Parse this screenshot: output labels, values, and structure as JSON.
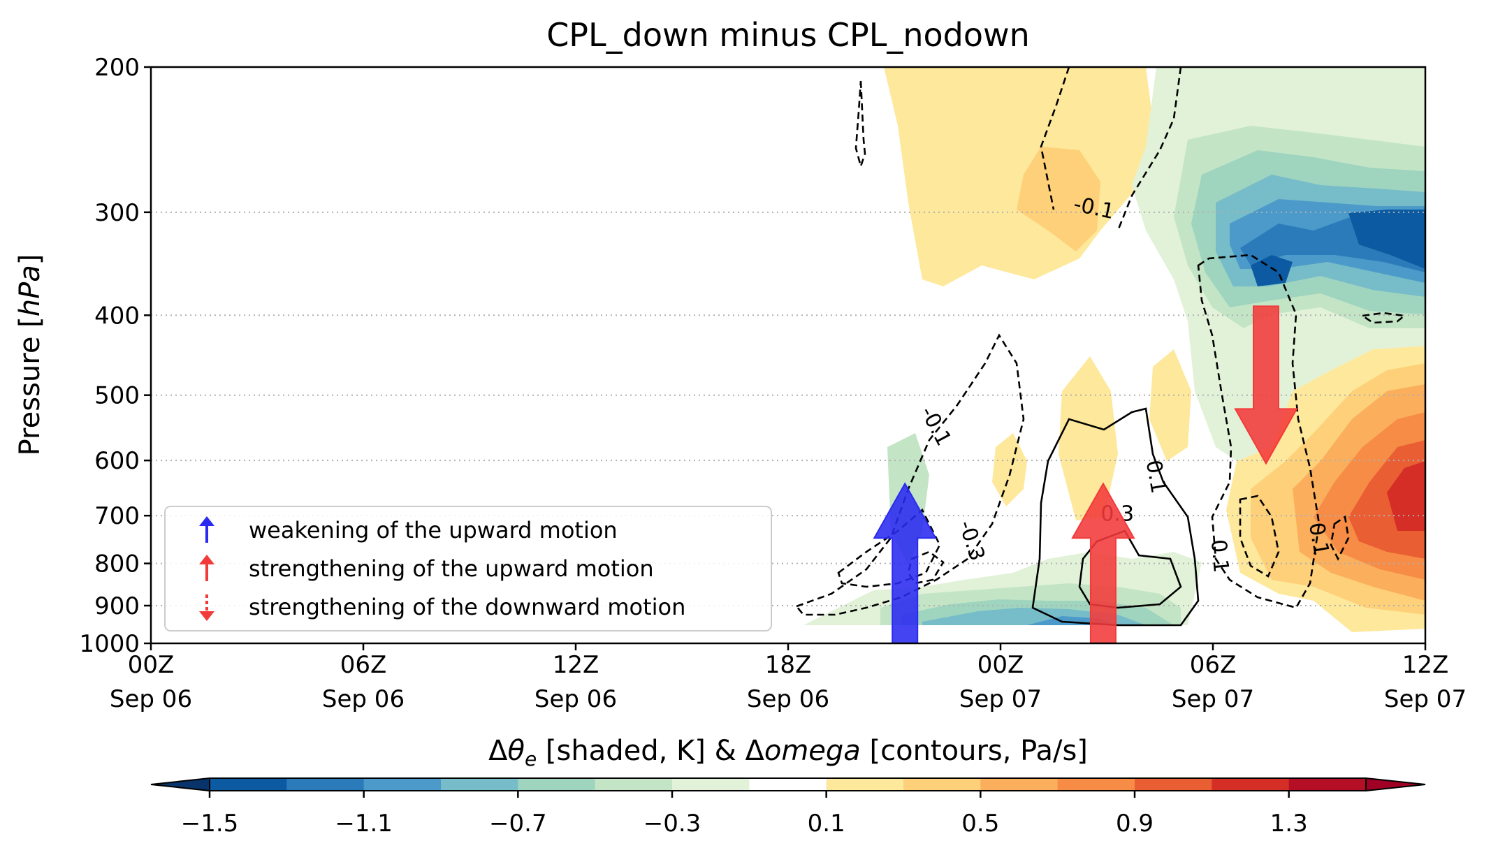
{
  "chart_data": {
    "type": "heatmap",
    "title": "CPL_down minus CPL_nodown",
    "ylabel_main": "Pressure [",
    "ylabel_unit": "hPa",
    "ylabel_end": "]",
    "yscale": "log",
    "ylim": [
      1000,
      200
    ],
    "yticks": [
      {
        "value": 200,
        "label": "200"
      },
      {
        "value": 300,
        "label": "300"
      },
      {
        "value": 400,
        "label": "400"
      },
      {
        "value": 500,
        "label": "500"
      },
      {
        "value": 600,
        "label": "600"
      },
      {
        "value": 700,
        "label": "700"
      },
      {
        "value": 800,
        "label": "800"
      },
      {
        "value": 900,
        "label": "900"
      },
      {
        "value": 1000,
        "label": "1000"
      }
    ],
    "xlim_hours": [
      0,
      36
    ],
    "xticks": [
      {
        "hour": 0,
        "line1": "00Z",
        "line2": "Sep 06"
      },
      {
        "hour": 6,
        "line1": "06Z",
        "line2": "Sep 06"
      },
      {
        "hour": 12,
        "line1": "12Z",
        "line2": "Sep 06"
      },
      {
        "hour": 18,
        "line1": "18Z",
        "line2": "Sep 06"
      },
      {
        "hour": 24,
        "line1": "00Z",
        "line2": "Sep 07"
      },
      {
        "hour": 30,
        "line1": "06Z",
        "line2": "Sep 07"
      },
      {
        "hour": 36,
        "line1": "12Z",
        "line2": "Sep 07"
      }
    ],
    "grid": "horizontal dotted at pressure ticks",
    "colorbar": {
      "label_prefix": "Δ",
      "label_theta": "θ",
      "label_sub": "e",
      "label_mid": " [shaded, K] & Δ",
      "label_omega": "omega",
      "label_end": " [contours, Pa/s]",
      "bounds": [
        -1.5,
        -1.3,
        -1.1,
        -0.9,
        -0.7,
        -0.5,
        -0.3,
        -0.1,
        0.1,
        0.3,
        0.5,
        0.7,
        0.9,
        1.1,
        1.3,
        1.5
      ],
      "colors": [
        "#0b5aa2",
        "#2b7bba",
        "#4c9ac9",
        "#76bcc9",
        "#9fd4bf",
        "#c3e5c6",
        "#e2f2d9",
        "#ffffff",
        "#fee89b",
        "#fdd079",
        "#fbae5c",
        "#f68c45",
        "#ea5e34",
        "#d52e27",
        "#b50f26"
      ],
      "extend_low": "#08336b",
      "extend_high": "#a00026",
      "ticks": [
        "−1.5",
        "−1.1",
        "−0.7",
        "−0.3",
        "0.1",
        "0.5",
        "0.9",
        "1.3"
      ],
      "tick_values": [
        -1.5,
        -1.1,
        -0.7,
        -0.3,
        0.1,
        0.5,
        0.9,
        1.3
      ]
    },
    "contour_labels": [
      {
        "text": "-0.1",
        "hour": 26.6,
        "p": 302,
        "rot": 12
      },
      {
        "text": "-0.1",
        "hour": 22.0,
        "p": 550,
        "rot": 62
      },
      {
        "text": "-0.3",
        "hour": 23.0,
        "p": 755,
        "rot": 72
      },
      {
        "text": "0.3",
        "hour": 27.3,
        "p": 710,
        "rot": 0
      },
      {
        "text": "0.1",
        "hour": 28.2,
        "p": 630,
        "rot": 80
      },
      {
        "text": "0.1",
        "hour": 30.0,
        "p": 785,
        "rot": 85
      },
      {
        "text": "0.1",
        "hour": 32.8,
        "p": 750,
        "rot": 80
      }
    ],
    "arrows": [
      {
        "kind": "up",
        "hour": 21.3,
        "color": "#2a2af0",
        "p_tail": 1000,
        "p_head": 640
      },
      {
        "kind": "up",
        "hour": 26.9,
        "color": "#f23a3a",
        "p_tail": 1000,
        "p_head": 640
      },
      {
        "kind": "down",
        "hour": 31.5,
        "color": "#f23a3a",
        "p_tail": 390,
        "p_head": 605
      }
    ]
  },
  "legend": {
    "location": "lower-left",
    "items": [
      {
        "label": "weakening of the upward motion",
        "color": "#2a2af0",
        "direction": "up"
      },
      {
        "label": "strengthening of the upward motion",
        "color": "#f23a3a",
        "direction": "up"
      },
      {
        "label": "strengthening of the downward motion",
        "color": "#f23a3a",
        "direction": "down"
      }
    ]
  }
}
